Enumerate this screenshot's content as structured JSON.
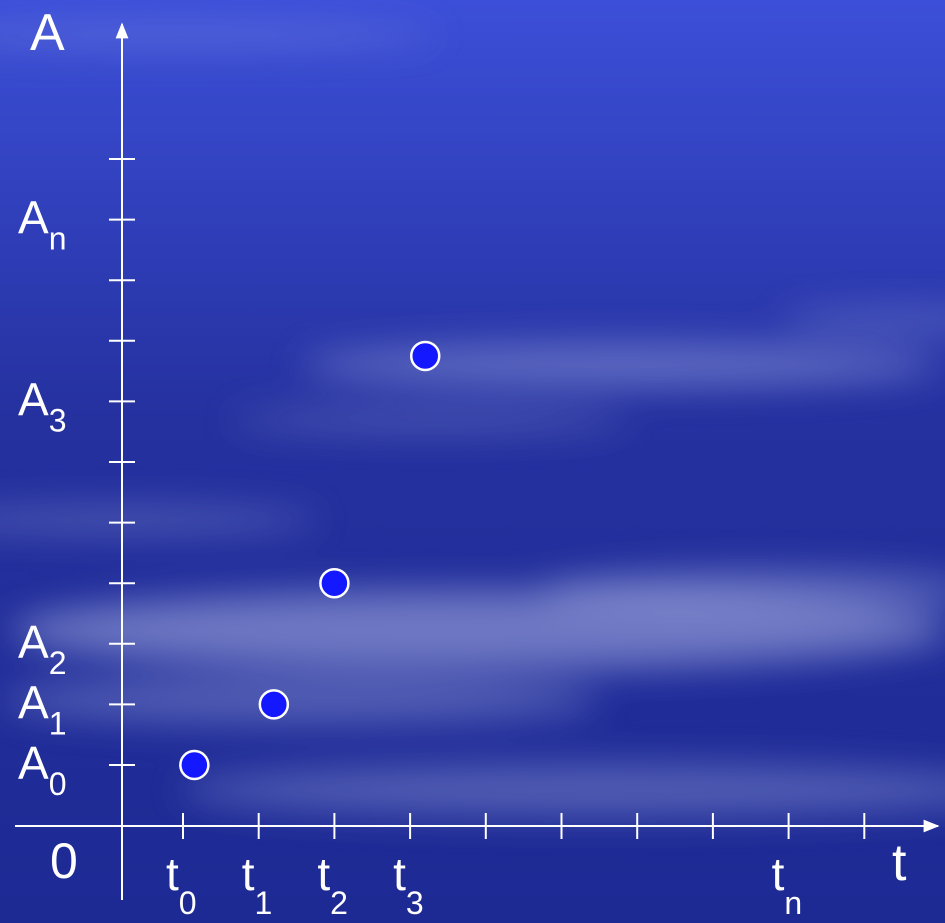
{
  "chart_data": {
    "type": "scatter",
    "axes": {
      "y_label": "A",
      "x_label": "t",
      "origin_label": "0"
    },
    "y_ticks": [
      {
        "main": "A",
        "sub": "0"
      },
      {
        "main": "A",
        "sub": "1"
      },
      {
        "main": "A",
        "sub": "2"
      },
      {
        "main": "",
        "sub": ""
      },
      {
        "main": "",
        "sub": ""
      },
      {
        "main": "",
        "sub": ""
      },
      {
        "main": "A",
        "sub": "3"
      },
      {
        "main": "",
        "sub": ""
      },
      {
        "main": "",
        "sub": ""
      },
      {
        "main": "A",
        "sub": "n"
      },
      {
        "main": "",
        "sub": ""
      }
    ],
    "x_ticks": [
      {
        "main": "t",
        "sub": "0"
      },
      {
        "main": "t",
        "sub": "1"
      },
      {
        "main": "t",
        "sub": "2"
      },
      {
        "main": "t",
        "sub": "3"
      },
      {
        "main": "",
        "sub": ""
      },
      {
        "main": "",
        "sub": ""
      },
      {
        "main": "",
        "sub": ""
      },
      {
        "main": "",
        "sub": ""
      },
      {
        "main": "t",
        "sub": "n"
      },
      {
        "main": "",
        "sub": ""
      }
    ],
    "points": [
      {
        "x": 0.15,
        "y": 0.0
      },
      {
        "x": 1.2,
        "y": 1.0
      },
      {
        "x": 2.0,
        "y": 3.0
      },
      {
        "x": 3.2,
        "y": 6.75
      }
    ],
    "grid": false,
    "legend": "none"
  },
  "colors": {
    "background_top": "#3c4fd8",
    "background_bottom": "#1d2a94",
    "axis": "#ffffff",
    "point_fill": "#1418ff",
    "point_stroke": "#ffffff"
  }
}
